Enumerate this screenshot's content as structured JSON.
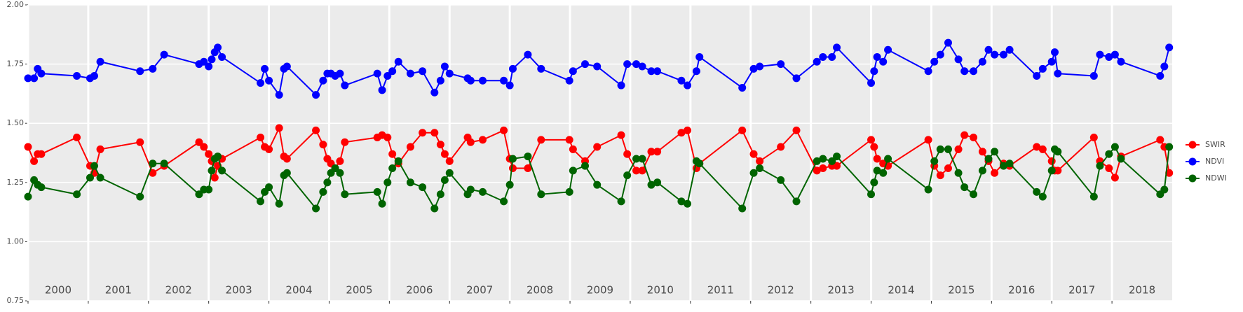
{
  "chart_data": {
    "type": "line",
    "x": [
      2000.0,
      2000.1,
      2000.16,
      2000.22,
      2000.81,
      2001.03,
      2001.1,
      2001.2,
      2001.86,
      2002.07,
      2002.26,
      2002.84,
      2002.92,
      2003.0,
      2003.05,
      2003.1,
      2003.15,
      2003.22,
      2003.86,
      2003.93,
      2004.0,
      2004.17,
      2004.25,
      2004.3,
      2004.78,
      2004.9,
      2004.97,
      2005.03,
      2005.1,
      2005.18,
      2005.26,
      2005.8,
      2005.88,
      2005.97,
      2006.05,
      2006.15,
      2006.35,
      2006.55,
      2006.75,
      2006.85,
      2006.92,
      2007.0,
      2007.3,
      2007.35,
      2007.55,
      2007.9,
      2008.0,
      2008.05,
      2008.3,
      2008.52,
      2008.99,
      2009.05,
      2009.25,
      2009.45,
      2009.85,
      2009.95,
      2010.1,
      2010.2,
      2010.35,
      2010.45,
      2010.85,
      2010.95,
      2011.1,
      2011.15,
      2011.86,
      2012.05,
      2012.15,
      2012.5,
      2012.76,
      2013.1,
      2013.2,
      2013.35,
      2013.43,
      2014.0,
      2014.05,
      2014.1,
      2014.2,
      2014.28,
      2014.95,
      2015.05,
      2015.15,
      2015.28,
      2015.45,
      2015.55,
      2015.7,
      2015.85,
      2015.95,
      2016.05,
      2016.2,
      2016.3,
      2016.75,
      2016.85,
      2017.0,
      2017.05,
      2017.1,
      2017.7,
      2017.8,
      2017.95,
      2018.05,
      2018.15,
      2018.8,
      2018.87,
      2018.95
    ],
    "series": [
      {
        "name": "SWIR",
        "color": "#ff0000",
        "values": [
          1.4,
          1.34,
          1.37,
          1.37,
          1.44,
          1.32,
          1.29,
          1.39,
          1.42,
          1.29,
          1.32,
          1.42,
          1.4,
          1.37,
          1.34,
          1.27,
          1.32,
          1.35,
          1.44,
          1.4,
          1.39,
          1.48,
          1.36,
          1.35,
          1.47,
          1.41,
          1.35,
          1.33,
          1.31,
          1.34,
          1.42,
          1.44,
          1.45,
          1.44,
          1.37,
          1.33,
          1.4,
          1.46,
          1.46,
          1.41,
          1.37,
          1.34,
          1.44,
          1.42,
          1.43,
          1.47,
          1.35,
          1.31,
          1.31,
          1.43,
          1.43,
          1.39,
          1.34,
          1.4,
          1.45,
          1.37,
          1.3,
          1.3,
          1.38,
          1.38,
          1.46,
          1.47,
          1.31,
          1.33,
          1.47,
          1.37,
          1.34,
          1.4,
          1.47,
          1.3,
          1.31,
          1.32,
          1.32,
          1.43,
          1.4,
          1.35,
          1.33,
          1.32,
          1.43,
          1.32,
          1.28,
          1.31,
          1.39,
          1.45,
          1.44,
          1.38,
          1.34,
          1.29,
          1.33,
          1.32,
          1.4,
          1.39,
          1.34,
          1.3,
          1.3,
          1.44,
          1.34,
          1.31,
          1.27,
          1.36,
          1.43,
          1.4,
          1.29
        ]
      },
      {
        "name": "NDVI",
        "color": "#0000ff",
        "values": [
          1.69,
          1.69,
          1.73,
          1.71,
          1.7,
          1.69,
          1.7,
          1.76,
          1.72,
          1.73,
          1.79,
          1.75,
          1.76,
          1.74,
          1.77,
          1.8,
          1.82,
          1.78,
          1.67,
          1.73,
          1.68,
          1.62,
          1.73,
          1.74,
          1.62,
          1.68,
          1.71,
          1.71,
          1.7,
          1.71,
          1.66,
          1.71,
          1.64,
          1.7,
          1.72,
          1.76,
          1.71,
          1.72,
          1.63,
          1.68,
          1.74,
          1.71,
          1.69,
          1.68,
          1.68,
          1.68,
          1.66,
          1.73,
          1.79,
          1.73,
          1.68,
          1.72,
          1.75,
          1.74,
          1.66,
          1.75,
          1.75,
          1.74,
          1.72,
          1.72,
          1.68,
          1.66,
          1.72,
          1.78,
          1.65,
          1.73,
          1.74,
          1.75,
          1.69,
          1.76,
          1.78,
          1.78,
          1.82,
          1.67,
          1.72,
          1.78,
          1.76,
          1.81,
          1.72,
          1.76,
          1.79,
          1.84,
          1.77,
          1.72,
          1.72,
          1.76,
          1.81,
          1.79,
          1.79,
          1.81,
          1.7,
          1.73,
          1.76,
          1.8,
          1.71,
          1.7,
          1.79,
          1.78,
          1.79,
          1.76,
          1.7,
          1.74,
          1.82
        ]
      },
      {
        "name": "NDWI",
        "color": "#006400",
        "values": [
          1.19,
          1.26,
          1.24,
          1.23,
          1.2,
          1.27,
          1.32,
          1.27,
          1.19,
          1.33,
          1.33,
          1.2,
          1.22,
          1.22,
          1.3,
          1.35,
          1.36,
          1.3,
          1.17,
          1.21,
          1.23,
          1.16,
          1.28,
          1.29,
          1.14,
          1.21,
          1.25,
          1.29,
          1.31,
          1.29,
          1.2,
          1.21,
          1.16,
          1.25,
          1.31,
          1.34,
          1.25,
          1.23,
          1.14,
          1.2,
          1.26,
          1.29,
          1.2,
          1.22,
          1.21,
          1.17,
          1.24,
          1.35,
          1.36,
          1.2,
          1.21,
          1.3,
          1.32,
          1.24,
          1.17,
          1.28,
          1.35,
          1.35,
          1.24,
          1.25,
          1.17,
          1.16,
          1.34,
          1.33,
          1.14,
          1.29,
          1.31,
          1.26,
          1.17,
          1.34,
          1.35,
          1.34,
          1.36,
          1.2,
          1.25,
          1.3,
          1.29,
          1.35,
          1.22,
          1.34,
          1.39,
          1.39,
          1.29,
          1.23,
          1.2,
          1.3,
          1.35,
          1.38,
          1.32,
          1.33,
          1.21,
          1.19,
          1.3,
          1.39,
          1.38,
          1.19,
          1.32,
          1.37,
          1.4,
          1.35,
          1.2,
          1.22,
          1.4
        ]
      }
    ],
    "xlim": [
      2000,
      2019
    ],
    "ylim": [
      0.75,
      2.0
    ],
    "yticks": [
      0.75,
      {
        "value": 1.0,
        "label": "1.00"
      },
      1.25,
      {
        "value": 1.5,
        "label": "1.50"
      },
      1.75,
      {
        "value": 2.0,
        "label": "2.00"
      }
    ],
    "panels": [
      2000,
      2001,
      2002,
      2003,
      2004,
      2005,
      2006,
      2007,
      2008,
      2009,
      2010,
      2011,
      2012,
      2013,
      2014,
      2015,
      2016,
      2017,
      2018
    ],
    "grid": true,
    "legend": "right"
  }
}
